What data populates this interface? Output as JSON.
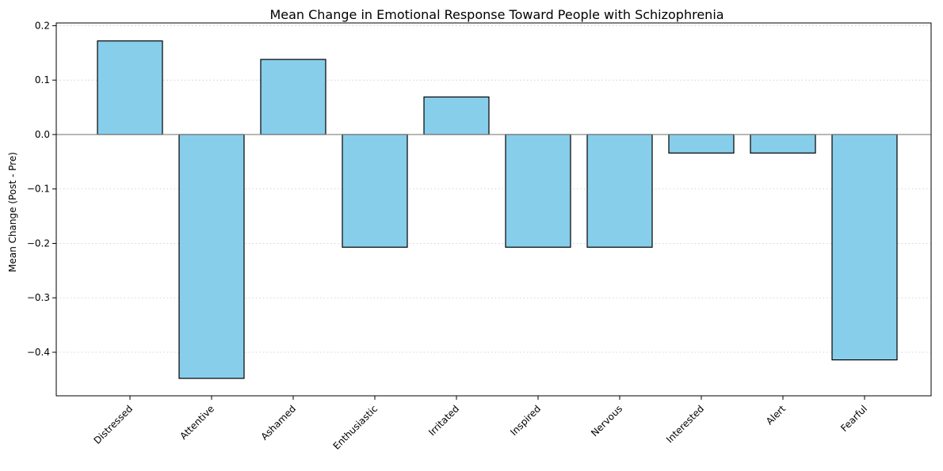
{
  "chart_data": {
    "type": "bar",
    "title": "Mean Change in Emotional Response Toward People with Schizophrenia",
    "xlabel": "",
    "ylabel": "Mean Change (Post - Pre)",
    "categories": [
      "Distressed",
      "Attentive",
      "Ashamed",
      "Enthusiastic",
      "Irritated",
      "Inspired",
      "Nervous",
      "Interested",
      "Alert",
      "Fearful"
    ],
    "values": [
      0.172,
      -0.448,
      0.138,
      -0.207,
      0.069,
      -0.207,
      -0.207,
      -0.034,
      -0.034,
      -0.414
    ],
    "ylim": [
      -0.48,
      0.205
    ],
    "yticks": [
      0.2,
      0.1,
      0.0,
      -0.1,
      -0.2,
      -0.3,
      -0.4
    ],
    "ytick_labels": [
      "0.2",
      "0.1",
      "0.0",
      "−0.1",
      "−0.2",
      "−0.3",
      "−0.4"
    ],
    "grid": "horizontal dotted",
    "bar_color": "#87ceeb",
    "bar_edge_color": "#000000",
    "zero_line_color": "#808080"
  }
}
